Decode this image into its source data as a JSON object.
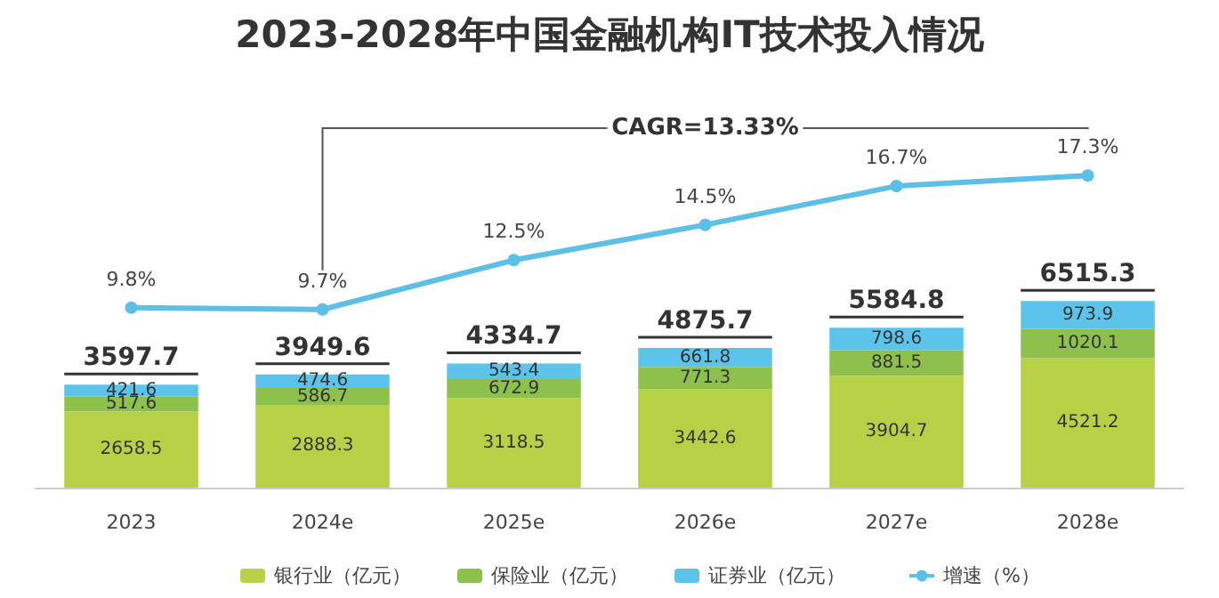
{
  "chart_data": [
    {
      "type": "bar",
      "title": "2023-2028年中国金融机构IT技术投入情况",
      "categories": [
        "2023",
        "2024e",
        "2025e",
        "2026e",
        "2027e",
        "2028e"
      ],
      "stacked": true,
      "data_labels": true,
      "legend": "bottom",
      "series": [
        {
          "name": "银行业（亿元）",
          "color": "#b6d145",
          "values": [
            2658.5,
            2888.3,
            3118.5,
            3442.6,
            3904.7,
            4521.2
          ]
        },
        {
          "name": "保险业（亿元）",
          "color": "#8ec04c",
          "values": [
            517.6,
            586.7,
            672.9,
            771.3,
            881.5,
            1020.1
          ]
        },
        {
          "name": "证券业（亿元）",
          "color": "#5cc4ea",
          "values": [
            421.6,
            474.6,
            543.4,
            661.8,
            798.6,
            973.9
          ]
        }
      ],
      "totals": [
        "3597.7",
        "3949.6",
        "4334.7",
        "4875.7",
        "5584.8",
        "6515.3"
      ]
    },
    {
      "type": "line",
      "categories": [
        null,
        null,
        null,
        null,
        null,
        null
      ],
      "legend": "bottom",
      "marker": "circle",
      "series": [
        {
          "name": "增速（%）",
          "color": "#5cbfe6",
          "values": [
            9.8,
            9.7,
            12.5,
            14.5,
            16.7,
            17.3
          ],
          "value_labels": [
            "9.8%",
            "9.7%",
            "12.5%",
            "14.5%",
            "16.7%",
            "17.3%"
          ]
        }
      ],
      "annotations": [
        "CAGR=13.33%"
      ]
    }
  ]
}
